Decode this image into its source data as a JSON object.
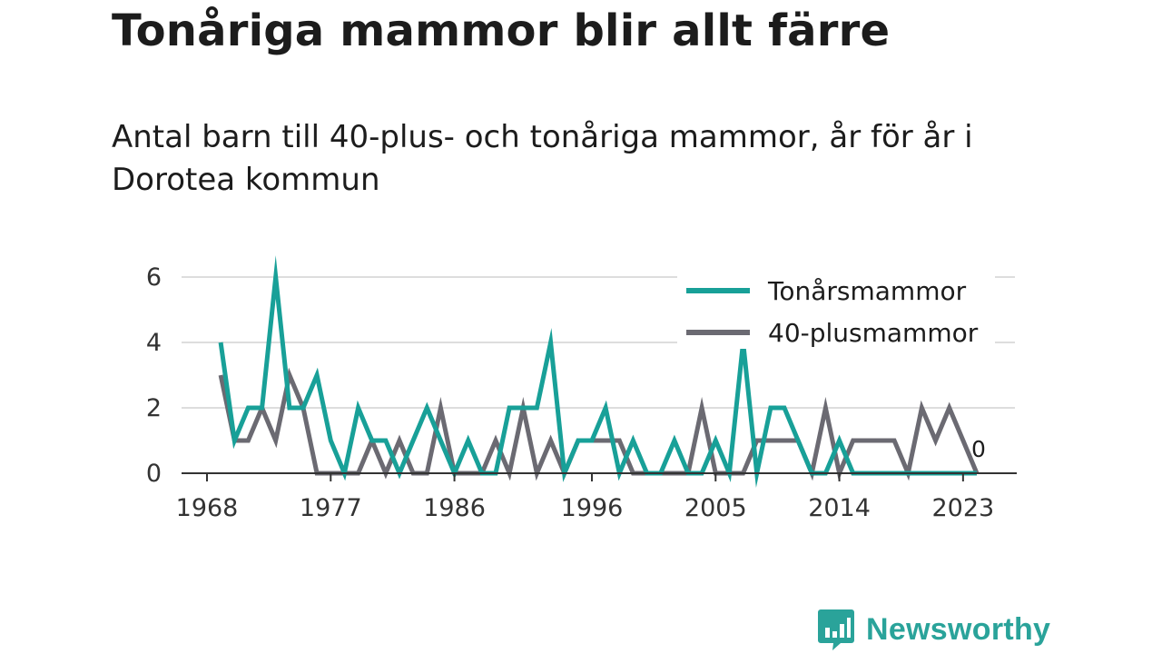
{
  "title": "Tonåriga mammor blir allt färre",
  "subtitle": "Antal barn till 40-plus- och tonåriga mammor, år för år i Dorotea kommun",
  "brand": {
    "name": "Newsworthy",
    "color": "#2aa39a"
  },
  "chart_data": {
    "type": "line",
    "x": [
      1969,
      1970,
      1971,
      1972,
      1973,
      1974,
      1975,
      1976,
      1977,
      1978,
      1979,
      1980,
      1981,
      1982,
      1983,
      1984,
      1985,
      1986,
      1987,
      1988,
      1989,
      1990,
      1991,
      1992,
      1993,
      1994,
      1995,
      1996,
      1997,
      1998,
      1999,
      2000,
      2001,
      2002,
      2003,
      2004,
      2005,
      2006,
      2007,
      2008,
      2009,
      2010,
      2011,
      2012,
      2013,
      2014,
      2015,
      2016,
      2017,
      2018,
      2019,
      2020,
      2021,
      2022,
      2023,
      2024
    ],
    "series": [
      {
        "name": "Tonårsmammor",
        "color": "#18a098",
        "values": [
          4,
          1,
          2,
          2,
          6,
          2,
          2,
          3,
          1,
          0,
          2,
          1,
          1,
          0,
          1,
          2,
          1,
          0,
          1,
          0,
          0,
          2,
          2,
          2,
          4,
          0,
          1,
          1,
          2,
          0,
          1,
          0,
          0,
          1,
          0,
          0,
          1,
          0,
          4,
          0,
          2,
          2,
          1,
          0,
          0,
          1,
          0,
          0,
          0,
          0,
          0,
          0,
          0,
          0,
          0,
          0
        ]
      },
      {
        "name": "40-plusmammor",
        "color": "#6b6a72",
        "values": [
          3,
          1,
          1,
          2,
          1,
          3,
          2,
          0,
          0,
          0,
          0,
          1,
          0,
          1,
          0,
          0,
          2,
          0,
          0,
          0,
          1,
          0,
          2,
          0,
          1,
          0,
          1,
          1,
          1,
          1,
          0,
          0,
          0,
          0,
          0,
          2,
          0,
          0,
          0,
          1,
          1,
          1,
          1,
          0,
          2,
          0,
          1,
          1,
          1,
          1,
          0,
          2,
          1,
          2,
          1,
          0
        ]
      }
    ],
    "x_ticks": [
      1968,
      1977,
      1986,
      1996,
      2005,
      2014,
      2023
    ],
    "y_ticks": [
      0,
      2,
      4,
      6
    ],
    "ylim": [
      0,
      6
    ],
    "end_label": "0",
    "grid": true,
    "legend": "top-right"
  }
}
